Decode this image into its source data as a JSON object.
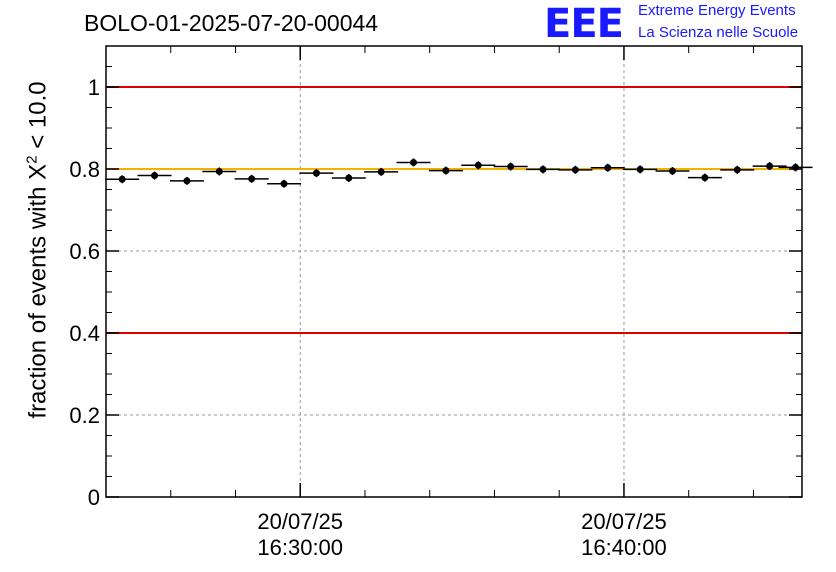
{
  "header": {
    "title": "BOLO-01-2025-07-20-00044",
    "logo_text": "EEE",
    "logo_line1": "Extreme Energy Events",
    "logo_line2": "La Scienza nelle Scuole"
  },
  "chart_data": {
    "type": "scatter",
    "ylabel_prefix": "fraction of events with X",
    "ylabel_sup": "2",
    "ylabel_suffix": " < 10.0",
    "xlabel": "",
    "ylim": [
      0,
      1.1
    ],
    "x_unit": "minutes after 20/07/25 16:24:00",
    "xlim": [
      0,
      21.5
    ],
    "grid": true,
    "y_ticks": [
      0,
      0.2,
      0.4,
      0.6,
      0.8,
      1
    ],
    "y_tick_labels": [
      "0",
      "0.2",
      "0.4",
      "0.6",
      "0.8",
      "1"
    ],
    "x_major_ticks": [
      {
        "x": 6,
        "date": "20/07/25",
        "time": "16:30:00"
      },
      {
        "x": 16,
        "date": "20/07/25",
        "time": "16:40:00"
      }
    ],
    "reference_lines": [
      {
        "y": 1.0,
        "color": "#e00000"
      },
      {
        "y": 0.4,
        "color": "#e00000"
      },
      {
        "y": 0.8,
        "color": "#f5b000"
      }
    ],
    "series": [
      {
        "x": [
          0.5,
          1.5,
          2.5,
          3.5,
          4.5,
          5.5,
          6.5,
          7.5,
          8.5,
          9.5,
          10.5,
          11.5,
          12.5,
          13.5,
          14.5,
          15.5,
          16.5,
          17.5,
          18.5,
          19.5,
          20.5,
          21.3
        ],
        "y": [
          0.775,
          0.784,
          0.771,
          0.794,
          0.776,
          0.764,
          0.79,
          0.778,
          0.793,
          0.816,
          0.796,
          0.809,
          0.806,
          0.799,
          0.798,
          0.803,
          0.799,
          0.795,
          0.779,
          0.798,
          0.807,
          0.804
        ]
      }
    ]
  }
}
